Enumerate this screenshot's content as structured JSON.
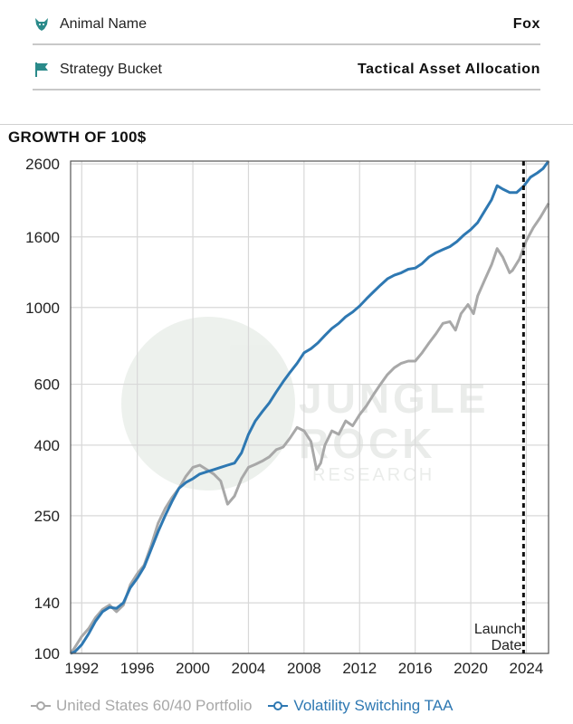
{
  "info": {
    "animal_label": "Animal Name",
    "animal_value": "Fox",
    "bucket_label": "Strategy Bucket",
    "bucket_value": "Tactical Asset Allocation",
    "icon_color": "#2a8a8a"
  },
  "chart_title": "GROWTH OF 100$",
  "watermark": {
    "line1": "JUNGLE",
    "line2": "ROCK",
    "line3": "RESEARCH"
  },
  "chart_data": {
    "type": "line",
    "title": "GROWTH OF 100$",
    "xlabel": "",
    "ylabel": "",
    "y_scale": "log",
    "ylim": [
      100,
      2650
    ],
    "xlim": [
      1991.2,
      2025.6
    ],
    "grid": true,
    "x_ticks": [
      1992,
      1996,
      2000,
      2004,
      2008,
      2012,
      2016,
      2020,
      2024
    ],
    "y_ticks": [
      100,
      140,
      250,
      400,
      600,
      1000,
      1600,
      2600
    ],
    "legend_position": "bottom",
    "annotation": {
      "x": 2023.8,
      "text_line1": "Launch",
      "text_line2": "Date"
    },
    "series": [
      {
        "name": "United States 60/40 Portfolio",
        "color": "#a8a8a8",
        "points": [
          [
            1991.2,
            100
          ],
          [
            1991.5,
            104
          ],
          [
            1992,
            112
          ],
          [
            1992.5,
            118
          ],
          [
            1993,
            127
          ],
          [
            1993.5,
            134
          ],
          [
            1994,
            138
          ],
          [
            1994.5,
            132
          ],
          [
            1995,
            138
          ],
          [
            1995.5,
            158
          ],
          [
            1996,
            170
          ],
          [
            1996.5,
            180
          ],
          [
            1997,
            205
          ],
          [
            1997.5,
            238
          ],
          [
            1998,
            262
          ],
          [
            1998.5,
            282
          ],
          [
            1999,
            300
          ],
          [
            1999.5,
            325
          ],
          [
            2000,
            345
          ],
          [
            2000.5,
            350
          ],
          [
            2001,
            340
          ],
          [
            2001.5,
            330
          ],
          [
            2002,
            315
          ],
          [
            2002.5,
            270
          ],
          [
            2003,
            285
          ],
          [
            2003.5,
            320
          ],
          [
            2004,
            345
          ],
          [
            2004.5,
            352
          ],
          [
            2005,
            360
          ],
          [
            2005.5,
            370
          ],
          [
            2006,
            388
          ],
          [
            2006.5,
            395
          ],
          [
            2007,
            420
          ],
          [
            2007.5,
            450
          ],
          [
            2008,
            440
          ],
          [
            2008.5,
            410
          ],
          [
            2008.9,
            340
          ],
          [
            2009.2,
            355
          ],
          [
            2009.5,
            400
          ],
          [
            2010,
            440
          ],
          [
            2010.5,
            430
          ],
          [
            2011,
            470
          ],
          [
            2011.5,
            455
          ],
          [
            2012,
            490
          ],
          [
            2012.5,
            520
          ],
          [
            2013,
            560
          ],
          [
            2013.5,
            600
          ],
          [
            2014,
            640
          ],
          [
            2014.5,
            670
          ],
          [
            2015,
            690
          ],
          [
            2015.5,
            700
          ],
          [
            2016,
            700
          ],
          [
            2016.5,
            740
          ],
          [
            2017,
            790
          ],
          [
            2017.5,
            840
          ],
          [
            2018,
            900
          ],
          [
            2018.5,
            910
          ],
          [
            2018.9,
            860
          ],
          [
            2019.3,
            960
          ],
          [
            2019.8,
            1020
          ],
          [
            2020.2,
            960
          ],
          [
            2020.5,
            1080
          ],
          [
            2021,
            1200
          ],
          [
            2021.5,
            1330
          ],
          [
            2021.9,
            1480
          ],
          [
            2022.3,
            1400
          ],
          [
            2022.8,
            1260
          ],
          [
            2023,
            1280
          ],
          [
            2023.5,
            1380
          ],
          [
            2024,
            1560
          ],
          [
            2024.5,
            1700
          ],
          [
            2025,
            1820
          ],
          [
            2025.6,
            2000
          ]
        ]
      },
      {
        "name": "Volatility Switching TAA",
        "color": "#2e78b2",
        "points": [
          [
            1991.2,
            100
          ],
          [
            1991.5,
            101
          ],
          [
            1992,
            106
          ],
          [
            1992.5,
            114
          ],
          [
            1993,
            124
          ],
          [
            1993.5,
            132
          ],
          [
            1994,
            136
          ],
          [
            1994.5,
            135
          ],
          [
            1995,
            140
          ],
          [
            1995.5,
            155
          ],
          [
            1996,
            165
          ],
          [
            1996.5,
            178
          ],
          [
            1997,
            200
          ],
          [
            1997.5,
            225
          ],
          [
            1998,
            250
          ],
          [
            1998.5,
            275
          ],
          [
            1999,
            300
          ],
          [
            1999.5,
            312
          ],
          [
            2000,
            320
          ],
          [
            2000.5,
            330
          ],
          [
            2001,
            335
          ],
          [
            2001.5,
            340
          ],
          [
            2002,
            345
          ],
          [
            2002.5,
            350
          ],
          [
            2003,
            355
          ],
          [
            2003.5,
            380
          ],
          [
            2004,
            430
          ],
          [
            2004.5,
            470
          ],
          [
            2005,
            500
          ],
          [
            2005.5,
            530
          ],
          [
            2006,
            570
          ],
          [
            2006.5,
            610
          ],
          [
            2007,
            650
          ],
          [
            2007.5,
            690
          ],
          [
            2008,
            740
          ],
          [
            2008.5,
            760
          ],
          [
            2009,
            790
          ],
          [
            2009.5,
            830
          ],
          [
            2010,
            870
          ],
          [
            2010.5,
            900
          ],
          [
            2011,
            940
          ],
          [
            2011.5,
            970
          ],
          [
            2012,
            1010
          ],
          [
            2012.5,
            1060
          ],
          [
            2013,
            1110
          ],
          [
            2013.5,
            1160
          ],
          [
            2014,
            1210
          ],
          [
            2014.5,
            1240
          ],
          [
            2015,
            1260
          ],
          [
            2015.5,
            1290
          ],
          [
            2016,
            1300
          ],
          [
            2016.5,
            1340
          ],
          [
            2017,
            1400
          ],
          [
            2017.5,
            1440
          ],
          [
            2018,
            1470
          ],
          [
            2018.5,
            1500
          ],
          [
            2019,
            1550
          ],
          [
            2019.5,
            1620
          ],
          [
            2020,
            1680
          ],
          [
            2020.5,
            1760
          ],
          [
            2021,
            1900
          ],
          [
            2021.5,
            2050
          ],
          [
            2021.9,
            2250
          ],
          [
            2022.3,
            2200
          ],
          [
            2022.8,
            2150
          ],
          [
            2023.3,
            2150
          ],
          [
            2023.8,
            2240
          ],
          [
            2024.3,
            2380
          ],
          [
            2024.8,
            2450
          ],
          [
            2025.2,
            2520
          ],
          [
            2025.6,
            2650
          ]
        ]
      }
    ]
  },
  "legend": {
    "series1": "United States 60/40 Portfolio",
    "series2": "Volatility Switching TAA"
  }
}
